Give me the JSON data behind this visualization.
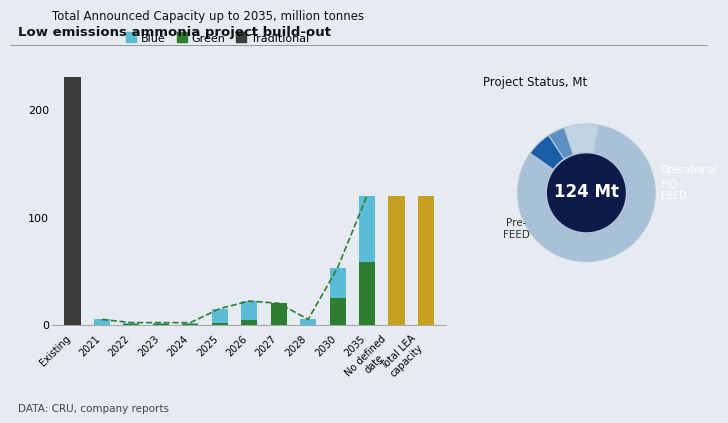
{
  "title": "Low emissions ammonia project build-out",
  "bar_title": "Total Announced Capacity up to 2035, million tonnes",
  "donut_title": "Project Status, Mt",
  "source": "DATA: CRU, company reports",
  "categories": [
    "Existing",
    "2021",
    "2022",
    "2023",
    "2024",
    "2025",
    "2026",
    "2027",
    "2028",
    "2030",
    "2035",
    "No defined\ndate",
    "Total LEA\ncapacity"
  ],
  "blue_values": [
    0,
    5,
    1,
    1,
    1,
    13,
    18,
    0,
    5,
    28,
    62,
    0,
    0
  ],
  "green_values": [
    0,
    0,
    1,
    1,
    1,
    2,
    4,
    20,
    0,
    25,
    58,
    0,
    0
  ],
  "traditional_values": [
    230,
    0,
    0,
    0,
    0,
    0,
    0,
    0,
    0,
    0,
    0,
    0,
    0
  ],
  "gold_values": [
    0,
    0,
    0,
    0,
    0,
    0,
    0,
    0,
    0,
    0,
    0,
    120,
    120
  ],
  "bar_color_blue": "#5BBCD6",
  "bar_color_green": "#2E7D32",
  "bar_color_traditional": "#3C3C3C",
  "bar_color_gold": "#C8A020",
  "ylim": [
    -5,
    250
  ],
  "yticks": [
    0,
    100,
    200
  ],
  "bg_color": "#E5EBF0",
  "donut_values": [
    82,
    6,
    4,
    8
  ],
  "donut_colors_list": [
    "#A8C0D8",
    "#1A5EA8",
    "#5B90C0",
    "#C0D4E4"
  ],
  "donut_labels": [
    "Pre-\nFEED",
    "Operational",
    "FID",
    "FEED"
  ],
  "center_value": "124 Mt",
  "center_color": "#0D1B4B",
  "wedge_edge_color": "#B8C8D8"
}
